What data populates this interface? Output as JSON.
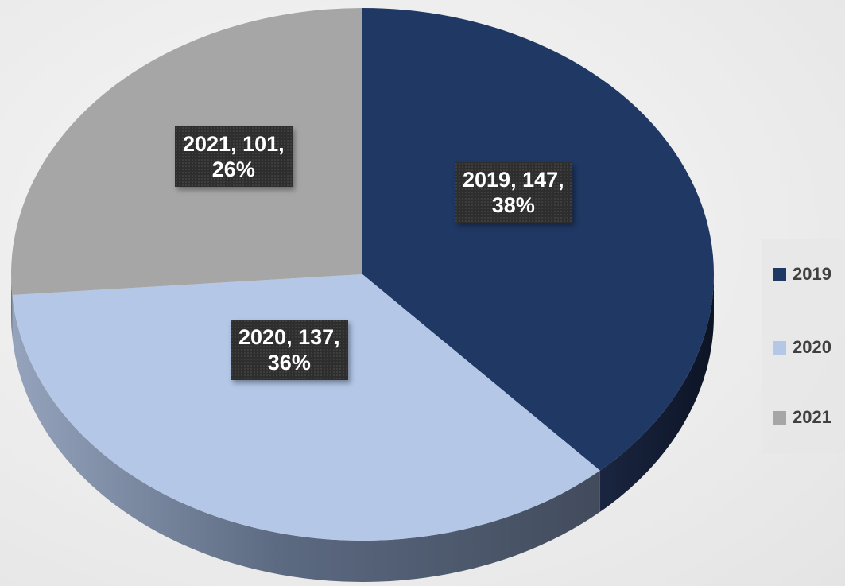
{
  "chart_data": {
    "type": "pie",
    "title": "",
    "categories": [
      "2019",
      "2020",
      "2021"
    ],
    "values": [
      147,
      137,
      101
    ],
    "percentages": [
      "38%",
      "36%",
      "26%"
    ],
    "data_labels": [
      {
        "line1": "2019, 147,",
        "line2": "38%"
      },
      {
        "line1": "2020, 137,",
        "line2": "36%"
      },
      {
        "line1": "2021, 101,",
        "line2": "26%"
      }
    ],
    "colors": [
      "#1f3864",
      "#b4c7e7",
      "#a6a6a6"
    ],
    "style": "3d",
    "legend_position": "right"
  }
}
